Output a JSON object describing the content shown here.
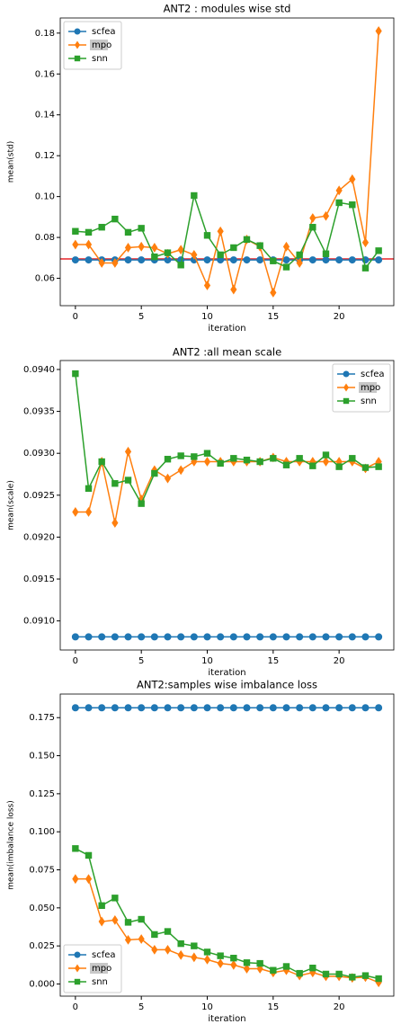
{
  "chart_data": [
    {
      "type": "line",
      "title": "ANT2 : modules wise std",
      "xlabel": "iteration",
      "ylabel": "mean(std)",
      "x": [
        0,
        1,
        2,
        3,
        4,
        5,
        6,
        7,
        8,
        9,
        10,
        11,
        12,
        13,
        14,
        15,
        16,
        17,
        18,
        19,
        20,
        21,
        22,
        23
      ],
      "xlim": [
        -1.15,
        24.15
      ],
      "xticks": [
        0,
        5,
        10,
        15,
        20
      ],
      "ylim": [
        0.0466,
        0.1874
      ],
      "yticks": [
        0.06,
        0.08,
        {
          "value": 0.1,
          "label": "0.10"
        },
        0.12,
        0.14,
        0.16,
        0.18
      ],
      "legend": "upper left",
      "hline": {
        "value": 0.0695,
        "color": "#e8252a"
      },
      "series": [
        {
          "name": "scfea",
          "color": "#1f77b4",
          "marker": "circle",
          "values": [
            0.069,
            0.069,
            0.069,
            0.069,
            0.069,
            0.069,
            0.069,
            0.069,
            0.069,
            0.069,
            0.069,
            0.069,
            0.069,
            0.069,
            0.069,
            0.069,
            0.069,
            0.069,
            0.069,
            0.069,
            0.069,
            0.069,
            0.069,
            0.069
          ]
        },
        {
          "name": "mpo",
          "color": "#ff7f0e",
          "marker": "diamond",
          "values": [
            0.0765,
            0.0765,
            0.0675,
            0.0675,
            0.075,
            0.0755,
            0.075,
            0.072,
            0.074,
            0.0715,
            0.0565,
            0.083,
            0.0545,
            0.079,
            0.0755,
            0.053,
            0.0755,
            0.0675,
            0.0895,
            0.0905,
            0.103,
            0.1085,
            0.0775,
            0.181
          ]
        },
        {
          "name": "snn",
          "color": "#2ca02c",
          "marker": "square",
          "values": [
            0.083,
            0.0825,
            0.085,
            0.089,
            0.0825,
            0.0845,
            0.0705,
            0.0725,
            0.0665,
            0.1005,
            0.081,
            0.0715,
            0.075,
            0.079,
            0.076,
            0.0685,
            0.0655,
            0.0715,
            0.085,
            0.072,
            0.097,
            0.096,
            0.065,
            0.0735
          ]
        }
      ]
    },
    {
      "type": "line",
      "title": "ANT2 :all mean scale",
      "xlabel": "iteration",
      "ylabel": "mean(scale)",
      "x": [
        0,
        1,
        2,
        3,
        4,
        5,
        6,
        7,
        8,
        9,
        10,
        11,
        12,
        13,
        14,
        15,
        16,
        17,
        18,
        19,
        20,
        21,
        22,
        23
      ],
      "xlim": [
        -1.15,
        24.15
      ],
      "xticks": [
        0,
        5,
        10,
        15,
        20
      ],
      "ylim": [
        0.090653,
        0.094107
      ],
      "yticks": [
        {
          "value": 0.091,
          "label": "0.0910"
        },
        0.0915,
        {
          "value": 0.092,
          "label": "0.0920"
        },
        0.0925,
        {
          "value": 0.093,
          "label": "0.0930"
        },
        0.0935,
        {
          "value": 0.094,
          "label": "0.0940"
        }
      ],
      "legend": "upper right",
      "series": [
        {
          "name": "scfea",
          "color": "#1f77b4",
          "marker": "circle",
          "values": [
            0.09081,
            0.09081,
            0.09081,
            0.09081,
            0.09081,
            0.09081,
            0.09081,
            0.09081,
            0.09081,
            0.09081,
            0.09081,
            0.09081,
            0.09081,
            0.09081,
            0.09081,
            0.09081,
            0.09081,
            0.09081,
            0.09081,
            0.09081,
            0.09081,
            0.09081,
            0.09081,
            0.09081
          ]
        },
        {
          "name": "mpo",
          "color": "#ff7f0e",
          "marker": "diamond",
          "values": [
            0.0923,
            0.0923,
            0.0929,
            0.09217,
            0.09302,
            0.09245,
            0.0928,
            0.0927,
            0.0928,
            0.0929,
            0.0929,
            0.0929,
            0.0929,
            0.0929,
            0.0929,
            0.09295,
            0.0929,
            0.0929,
            0.0929,
            0.0929,
            0.0929,
            0.0929,
            0.09282,
            0.0929
          ]
        },
        {
          "name": "snn",
          "color": "#2ca02c",
          "marker": "square",
          "values": [
            0.09395,
            0.09258,
            0.0929,
            0.09264,
            0.09268,
            0.0924,
            0.09276,
            0.09293,
            0.09297,
            0.09296,
            0.093,
            0.09288,
            0.09294,
            0.09292,
            0.0929,
            0.09294,
            0.09286,
            0.09294,
            0.09285,
            0.09298,
            0.09284,
            0.09294,
            0.09283,
            0.09284
          ]
        }
      ]
    },
    {
      "type": "line",
      "title": "ANT2:samples wise imbalance loss",
      "xlabel": "iteration",
      "ylabel": "mean(imbalance loss)",
      "x": [
        0,
        1,
        2,
        3,
        4,
        5,
        6,
        7,
        8,
        9,
        10,
        11,
        12,
        13,
        14,
        15,
        16,
        17,
        18,
        19,
        20,
        21,
        22,
        23
      ],
      "xlim": [
        -1.15,
        24.15
      ],
      "xticks": [
        0,
        5,
        10,
        15,
        20
      ],
      "ylim": [
        -0.008,
        0.1905
      ],
      "yticks": [
        {
          "value": 0.0,
          "label": "0.000"
        },
        0.025,
        {
          "value": 0.05,
          "label": "0.050"
        },
        0.075,
        {
          "value": 0.1,
          "label": "0.100"
        },
        0.125,
        {
          "value": 0.15,
          "label": "0.150"
        },
        0.175
      ],
      "legend": "lower left",
      "series": [
        {
          "name": "scfea",
          "color": "#1f77b4",
          "marker": "circle",
          "values": [
            0.1815,
            0.1815,
            0.1815,
            0.1815,
            0.1815,
            0.1815,
            0.1815,
            0.1815,
            0.1815,
            0.1815,
            0.1815,
            0.1815,
            0.1815,
            0.1815,
            0.1815,
            0.1815,
            0.1815,
            0.1815,
            0.1815,
            0.1815,
            0.1815,
            0.1815,
            0.1815,
            0.1815
          ]
        },
        {
          "name": "mpo",
          "color": "#ff7f0e",
          "marker": "diamond",
          "values": [
            0.069,
            0.069,
            0.041,
            0.042,
            0.029,
            0.0295,
            0.0225,
            0.0225,
            0.019,
            0.0175,
            0.016,
            0.0135,
            0.0125,
            0.01,
            0.01,
            0.0075,
            0.009,
            0.0055,
            0.0075,
            0.005,
            0.005,
            0.004,
            0.0045,
            0.001
          ]
        },
        {
          "name": "snn",
          "color": "#2ca02c",
          "marker": "square",
          "values": [
            0.089,
            0.0845,
            0.0515,
            0.0565,
            0.0405,
            0.0425,
            0.0325,
            0.0345,
            0.0265,
            0.025,
            0.021,
            0.0185,
            0.017,
            0.014,
            0.0135,
            0.009,
            0.0115,
            0.007,
            0.0105,
            0.0065,
            0.0065,
            0.0045,
            0.0055,
            0.0035
          ]
        }
      ]
    }
  ]
}
